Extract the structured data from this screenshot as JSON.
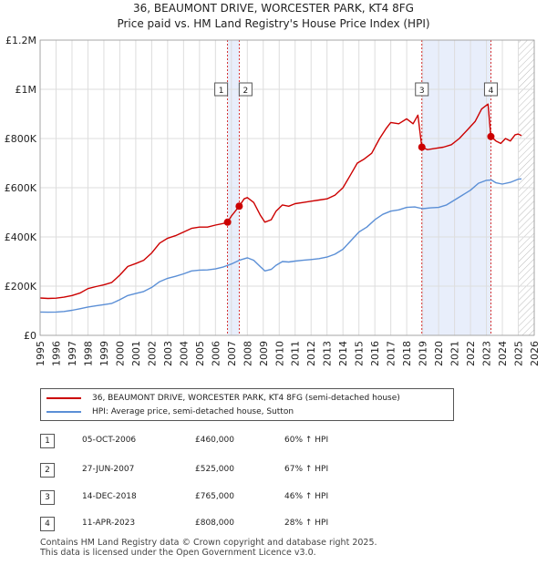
{
  "chart_data": {
    "type": "line",
    "title": "36, BEAUMONT DRIVE, WORCESTER PARK, KT4 8FG",
    "subtitle": "Price paid vs. HM Land Registry's House Price Index (HPI)",
    "xlim": [
      1995,
      2026
    ],
    "ylim": [
      0,
      1200000
    ],
    "x_ticks": [
      "1995",
      "1996",
      "1997",
      "1998",
      "1999",
      "2000",
      "2001",
      "2002",
      "2003",
      "2004",
      "2005",
      "2006",
      "2007",
      "2008",
      "2009",
      "2010",
      "2011",
      "2012",
      "2013",
      "2014",
      "2015",
      "2016",
      "2017",
      "2018",
      "2019",
      "2020",
      "2021",
      "2022",
      "2023",
      "2024",
      "2025",
      "2026"
    ],
    "y_ticks": [
      {
        "value": 0,
        "label": "£0"
      },
      {
        "value": 200000,
        "label": "£200K"
      },
      {
        "value": 400000,
        "label": "£400K"
      },
      {
        "value": 600000,
        "label": "£600K"
      },
      {
        "value": 800000,
        "label": "£800K"
      },
      {
        "value": 1000000,
        "label": "£1M"
      },
      {
        "value": 1200000,
        "label": "£1.2M"
      }
    ],
    "shaded_regions": [
      {
        "from": 2006.76,
        "to": 2007.49
      },
      {
        "from": 2018.95,
        "to": 2023.28
      }
    ],
    "hatched_region": {
      "from": 2025.0,
      "to": 2026.0
    },
    "series": [
      {
        "name": "36, BEAUMONT DRIVE, WORCESTER PARK, KT4 8FG (semi-detached house)",
        "color": "#cc0000",
        "points": [
          [
            1995.0,
            152000
          ],
          [
            1995.5,
            150000
          ],
          [
            1996.0,
            151000
          ],
          [
            1996.5,
            155000
          ],
          [
            1997.0,
            162000
          ],
          [
            1997.5,
            172000
          ],
          [
            1998.0,
            190000
          ],
          [
            1998.5,
            198000
          ],
          [
            1999.0,
            205000
          ],
          [
            1999.5,
            215000
          ],
          [
            2000.0,
            245000
          ],
          [
            2000.5,
            280000
          ],
          [
            2001.0,
            292000
          ],
          [
            2001.5,
            305000
          ],
          [
            2002.0,
            335000
          ],
          [
            2002.5,
            375000
          ],
          [
            2003.0,
            395000
          ],
          [
            2003.5,
            405000
          ],
          [
            2004.0,
            420000
          ],
          [
            2004.5,
            435000
          ],
          [
            2005.0,
            440000
          ],
          [
            2005.5,
            440000
          ],
          [
            2006.0,
            448000
          ],
          [
            2006.5,
            455000
          ],
          [
            2006.76,
            460000
          ],
          [
            2007.0,
            485000
          ],
          [
            2007.49,
            525000
          ],
          [
            2007.8,
            555000
          ],
          [
            2008.0,
            560000
          ],
          [
            2008.4,
            540000
          ],
          [
            2008.8,
            490000
          ],
          [
            2009.1,
            460000
          ],
          [
            2009.5,
            470000
          ],
          [
            2009.8,
            505000
          ],
          [
            2010.2,
            530000
          ],
          [
            2010.6,
            525000
          ],
          [
            2011.0,
            535000
          ],
          [
            2011.5,
            540000
          ],
          [
            2012.0,
            545000
          ],
          [
            2012.5,
            550000
          ],
          [
            2013.0,
            555000
          ],
          [
            2013.5,
            570000
          ],
          [
            2014.0,
            600000
          ],
          [
            2014.5,
            655000
          ],
          [
            2014.9,
            700000
          ],
          [
            2015.3,
            715000
          ],
          [
            2015.8,
            740000
          ],
          [
            2016.3,
            800000
          ],
          [
            2016.7,
            840000
          ],
          [
            2017.0,
            865000
          ],
          [
            2017.5,
            860000
          ],
          [
            2018.0,
            880000
          ],
          [
            2018.4,
            860000
          ],
          [
            2018.7,
            895000
          ],
          [
            2018.95,
            765000
          ],
          [
            2019.3,
            755000
          ],
          [
            2019.8,
            760000
          ],
          [
            2020.3,
            765000
          ],
          [
            2020.8,
            775000
          ],
          [
            2021.3,
            800000
          ],
          [
            2021.8,
            835000
          ],
          [
            2022.3,
            870000
          ],
          [
            2022.7,
            920000
          ],
          [
            2023.0,
            935000
          ],
          [
            2023.1,
            940000
          ],
          [
            2023.28,
            808000
          ],
          [
            2023.6,
            790000
          ],
          [
            2023.9,
            780000
          ],
          [
            2024.2,
            800000
          ],
          [
            2024.5,
            790000
          ],
          [
            2024.8,
            815000
          ],
          [
            2025.0,
            818000
          ],
          [
            2025.2,
            812000
          ]
        ]
      },
      {
        "name": "HPI: Average price, semi-detached house, Sutton",
        "color": "#5b8fd6",
        "points": [
          [
            1995.0,
            95000
          ],
          [
            1995.5,
            94000
          ],
          [
            1996.0,
            95000
          ],
          [
            1996.5,
            97000
          ],
          [
            1997.0,
            102000
          ],
          [
            1997.5,
            108000
          ],
          [
            1998.0,
            115000
          ],
          [
            1998.5,
            120000
          ],
          [
            1999.0,
            125000
          ],
          [
            1999.5,
            130000
          ],
          [
            2000.0,
            145000
          ],
          [
            2000.5,
            162000
          ],
          [
            2001.0,
            170000
          ],
          [
            2001.5,
            178000
          ],
          [
            2002.0,
            195000
          ],
          [
            2002.5,
            218000
          ],
          [
            2003.0,
            232000
          ],
          [
            2003.5,
            240000
          ],
          [
            2004.0,
            250000
          ],
          [
            2004.5,
            262000
          ],
          [
            2005.0,
            265000
          ],
          [
            2005.5,
            266000
          ],
          [
            2006.0,
            270000
          ],
          [
            2006.5,
            278000
          ],
          [
            2007.0,
            290000
          ],
          [
            2007.5,
            305000
          ],
          [
            2008.0,
            315000
          ],
          [
            2008.4,
            305000
          ],
          [
            2008.8,
            280000
          ],
          [
            2009.1,
            262000
          ],
          [
            2009.5,
            268000
          ],
          [
            2009.8,
            285000
          ],
          [
            2010.2,
            300000
          ],
          [
            2010.6,
            298000
          ],
          [
            2011.0,
            302000
          ],
          [
            2011.5,
            305000
          ],
          [
            2012.0,
            308000
          ],
          [
            2012.5,
            312000
          ],
          [
            2013.0,
            318000
          ],
          [
            2013.5,
            330000
          ],
          [
            2014.0,
            350000
          ],
          [
            2014.5,
            385000
          ],
          [
            2015.0,
            420000
          ],
          [
            2015.5,
            440000
          ],
          [
            2016.0,
            470000
          ],
          [
            2016.5,
            492000
          ],
          [
            2017.0,
            505000
          ],
          [
            2017.5,
            510000
          ],
          [
            2018.0,
            520000
          ],
          [
            2018.5,
            522000
          ],
          [
            2019.0,
            515000
          ],
          [
            2019.5,
            518000
          ],
          [
            2020.0,
            520000
          ],
          [
            2020.5,
            530000
          ],
          [
            2021.0,
            550000
          ],
          [
            2021.5,
            570000
          ],
          [
            2022.0,
            590000
          ],
          [
            2022.5,
            618000
          ],
          [
            2023.0,
            630000
          ],
          [
            2023.3,
            632000
          ],
          [
            2023.6,
            620000
          ],
          [
            2024.0,
            615000
          ],
          [
            2024.5,
            622000
          ],
          [
            2025.0,
            635000
          ],
          [
            2025.2,
            636000
          ]
        ]
      }
    ],
    "markers": [
      {
        "label": "1",
        "x": 2006.76,
        "y": 460000
      },
      {
        "label": "2",
        "x": 2007.49,
        "y": 525000
      },
      {
        "label": "3",
        "x": 2018.95,
        "y": 765000
      },
      {
        "label": "4",
        "x": 2023.28,
        "y": 808000
      }
    ]
  },
  "legend": {
    "property": "36, BEAUMONT DRIVE, WORCESTER PARK, KT4 8FG (semi-detached house)",
    "hpi": "HPI: Average price, semi-detached house, Sutton"
  },
  "transactions": [
    {
      "num": "1",
      "date": "05-OCT-2006",
      "price": "£460,000",
      "hpi": "60% ↑ HPI"
    },
    {
      "num": "2",
      "date": "27-JUN-2007",
      "price": "£525,000",
      "hpi": "67% ↑ HPI"
    },
    {
      "num": "3",
      "date": "14-DEC-2018",
      "price": "£765,000",
      "hpi": "46% ↑ HPI"
    },
    {
      "num": "4",
      "date": "11-APR-2023",
      "price": "£808,000",
      "hpi": "28% ↑ HPI"
    }
  ],
  "footer": {
    "line1": "Contains HM Land Registry data © Crown copyright and database right 2025.",
    "line2": "This data is licensed under the Open Government Licence v3.0."
  },
  "colors": {
    "property": "#cc0000",
    "hpi": "#5b8fd6",
    "shade": "#e8eefb",
    "grid": "#dddddd"
  }
}
